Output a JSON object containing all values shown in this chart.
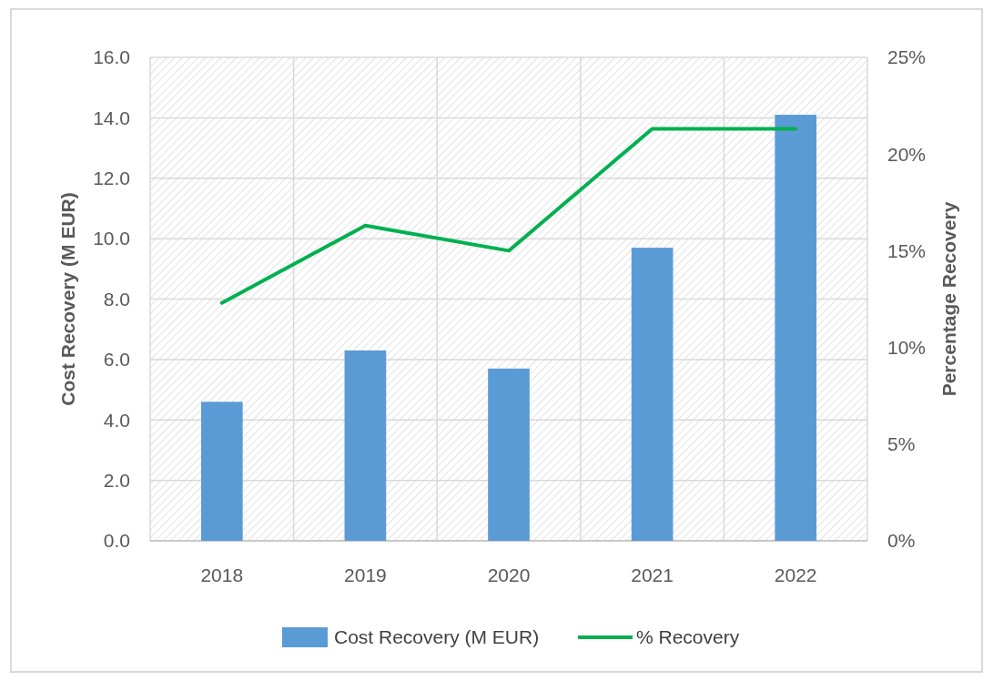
{
  "chart_data": {
    "type": "bar",
    "categories": [
      "2018",
      "2019",
      "2020",
      "2021",
      "2022"
    ],
    "series": [
      {
        "name": "Cost Recovery (M EUR)",
        "color": "#5b9bd5",
        "values": [
          4.6,
          6.3,
          5.7,
          9.7,
          14.1
        ]
      },
      {
        "name": "% Recovery",
        "type": "line",
        "axis": "y2",
        "color": "#00b050",
        "values": [
          12.3,
          16.3,
          15.0,
          21.3,
          21.3
        ]
      }
    ],
    "ylabel": "Cost Recovery (M EUR)",
    "y2label": "Percentage Recovery",
    "ylim": [
      0,
      16
    ],
    "yticks": [
      {
        "value": 0,
        "label": "0.0"
      },
      {
        "value": 2,
        "label": "2.0"
      },
      {
        "value": 4,
        "label": "4.0"
      },
      {
        "value": 6,
        "label": "6.0"
      },
      {
        "value": 8,
        "label": "8.0"
      },
      {
        "value": 10,
        "label": "10.0"
      },
      {
        "value": 12,
        "label": "12.0"
      },
      {
        "value": 14,
        "label": "14.0"
      },
      {
        "value": 16,
        "label": "16.0"
      }
    ],
    "y2lim": [
      0,
      25
    ],
    "y2ticks": [
      {
        "value": 0,
        "label": "0%"
      },
      {
        "value": 5,
        "label": "5%"
      },
      {
        "value": 10,
        "label": "10%"
      },
      {
        "value": 15,
        "label": "15%"
      },
      {
        "value": 20,
        "label": "20%"
      },
      {
        "value": 25,
        "label": "25%"
      }
    ],
    "grid": true,
    "legend": "bottom",
    "marker": "none",
    "line_style": "solid"
  }
}
